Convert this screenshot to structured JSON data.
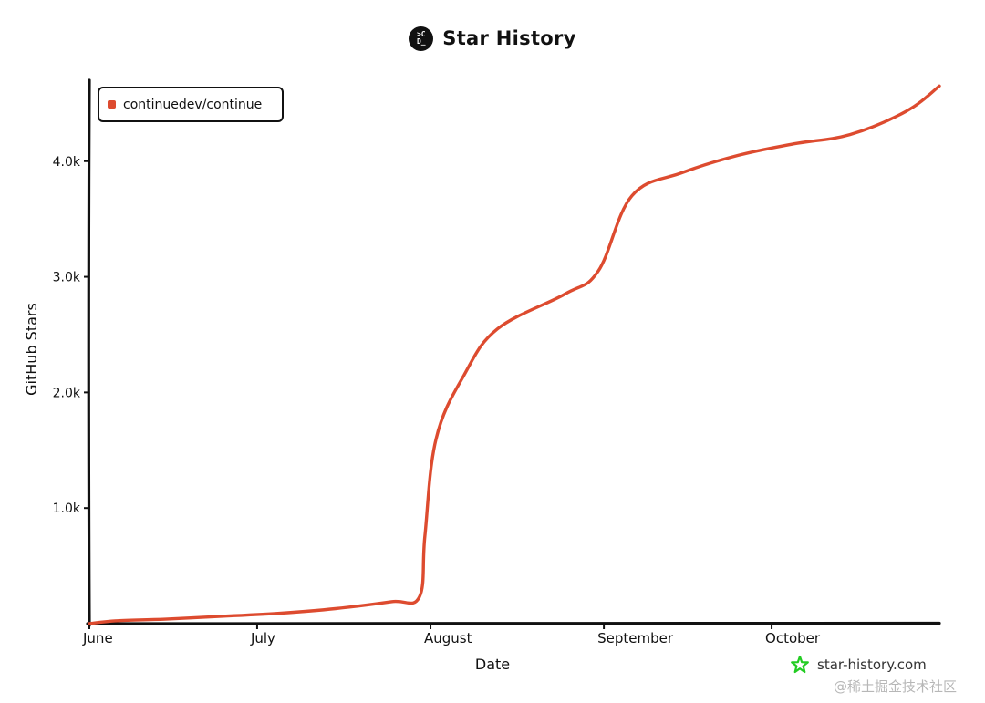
{
  "header": {
    "logo_text": ">C\nD_",
    "title": "Star History"
  },
  "legend": {
    "label": "continuedev/continue"
  },
  "footer": {
    "brand": "star-history.com",
    "watermark": "@稀土掘金技术社区"
  },
  "colors": {
    "series": "#dd4b2f",
    "axis": "#111111",
    "brand_icon": "#22cc22"
  },
  "chart_data": {
    "type": "line",
    "title": "Star History",
    "xlabel": "Date",
    "ylabel": "GitHub Stars",
    "xlim": [
      "2023-06-01",
      "2023-10-31"
    ],
    "ylim": [
      0,
      4700
    ],
    "grid": false,
    "legend_position": "top-left",
    "x_ticks": [
      {
        "date": "2023-06-01",
        "label": "June"
      },
      {
        "date": "2023-07-01",
        "label": "July"
      },
      {
        "date": "2023-08-01",
        "label": "August"
      },
      {
        "date": "2023-09-01",
        "label": "September"
      },
      {
        "date": "2023-10-01",
        "label": "October"
      }
    ],
    "y_ticks": [
      {
        "value": 1000,
        "label": "1.0k"
      },
      {
        "value": 2000,
        "label": "2.0k"
      },
      {
        "value": 3000,
        "label": "3.0k"
      },
      {
        "value": 4000,
        "label": "4.0k"
      }
    ],
    "series": [
      {
        "name": "continuedev/continue",
        "points": [
          {
            "date": "2023-06-01",
            "value": 0
          },
          {
            "date": "2023-06-06",
            "value": 25
          },
          {
            "date": "2023-06-15",
            "value": 40
          },
          {
            "date": "2023-06-25",
            "value": 65
          },
          {
            "date": "2023-07-05",
            "value": 90
          },
          {
            "date": "2023-07-15",
            "value": 130
          },
          {
            "date": "2023-07-25",
            "value": 190
          },
          {
            "date": "2023-07-30",
            "value": 230
          },
          {
            "date": "2023-07-31",
            "value": 760
          },
          {
            "date": "2023-08-02",
            "value": 1600
          },
          {
            "date": "2023-08-07",
            "value": 2150
          },
          {
            "date": "2023-08-13",
            "value": 2550
          },
          {
            "date": "2023-08-25",
            "value": 2850
          },
          {
            "date": "2023-08-31",
            "value": 3050
          },
          {
            "date": "2023-09-06",
            "value": 3700
          },
          {
            "date": "2023-09-15",
            "value": 3900
          },
          {
            "date": "2023-09-25",
            "value": 4050
          },
          {
            "date": "2023-10-05",
            "value": 4150
          },
          {
            "date": "2023-10-15",
            "value": 4230
          },
          {
            "date": "2023-10-25",
            "value": 4430
          },
          {
            "date": "2023-10-31",
            "value": 4650
          }
        ]
      }
    ]
  }
}
